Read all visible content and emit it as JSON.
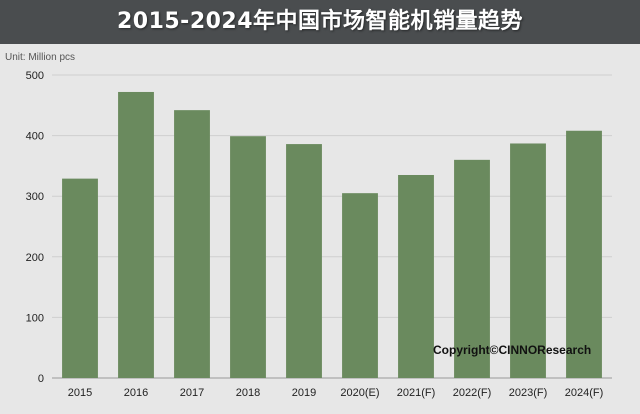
{
  "title": "2015-2024年中国市场智能机销量趋势",
  "unit_label": "Unit:  Million pcs",
  "copyright": "Copyright©CINNOResearch",
  "colors": {
    "bar": "#6a8a5e",
    "banner": "#4a4d4f",
    "plot_bg": "#e7e7e7",
    "grid": "#cfcfcf"
  },
  "chart_data": {
    "type": "bar",
    "title": "2015-2024年中国市场智能机销量趋势",
    "xlabel": "",
    "ylabel": "",
    "unit": "Million pcs",
    "categories": [
      "2015",
      "2016",
      "2017",
      "2018",
      "2019",
      "2020(E)",
      "2021(F)",
      "2022(F)",
      "2023(F)",
      "2024(F)"
    ],
    "values": [
      329,
      472,
      442,
      399,
      386,
      305,
      335,
      360,
      387,
      408
    ],
    "ylim": [
      0,
      500
    ],
    "yticks": [
      0,
      100,
      200,
      300,
      400,
      500
    ],
    "grid": true,
    "legend": "none"
  }
}
